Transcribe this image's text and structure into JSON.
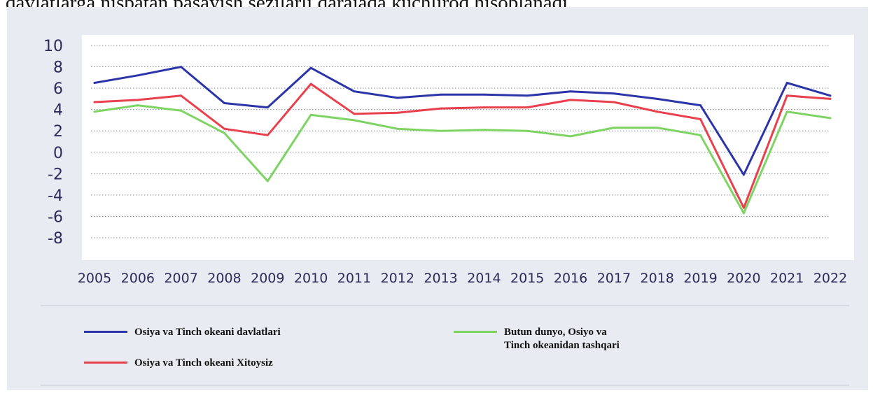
{
  "header": {
    "text": "davlatlarga nisbatan pasayish sezilarli darajada kuchliroq hisoblanadi."
  },
  "colors": {
    "panel_bg": "#e8ecf2",
    "grid": "#8a8f9a",
    "tick_text": "#2e2a5a"
  },
  "chart_data": {
    "type": "line",
    "x": [
      "2005",
      "2006",
      "2007",
      "2008",
      "2009",
      "2010",
      "2011",
      "2012",
      "2013",
      "2014",
      "2015",
      "2016",
      "2017",
      "2018",
      "2019",
      "2020",
      "2021",
      "2022"
    ],
    "ylim": [
      -8,
      10
    ],
    "yticks": [
      "10",
      "8",
      "6",
      "4",
      "2",
      "0",
      "-2",
      "-4",
      "-6",
      "-8"
    ],
    "grid": "horizontal dotted",
    "legend_position": "bottom",
    "series": [
      {
        "name": "Osiya va Tinch okeani davlatlari",
        "color": "#2b35a8",
        "values": [
          6.5,
          7.2,
          8.0,
          4.6,
          4.2,
          7.9,
          5.7,
          5.1,
          5.4,
          5.4,
          5.3,
          5.7,
          5.5,
          5.0,
          4.4,
          -2.1,
          6.5,
          5.3
        ]
      },
      {
        "name": "Osiya va Tinch okeani Xitoysiz",
        "color": "#e8404c",
        "values": [
          4.7,
          4.9,
          5.3,
          2.2,
          1.6,
          6.4,
          3.6,
          3.7,
          4.1,
          4.2,
          4.2,
          4.9,
          4.7,
          3.8,
          3.1,
          -5.2,
          5.3,
          5.0
        ]
      },
      {
        "name": "Butun dunyo, Osiyo va\nTinch okeanidan tashqari",
        "color": "#7ed462",
        "values": [
          3.8,
          4.4,
          3.9,
          1.8,
          -2.7,
          3.5,
          3.0,
          2.2,
          2.0,
          2.1,
          2.0,
          1.5,
          2.3,
          2.3,
          1.6,
          -5.7,
          3.8,
          3.2
        ]
      }
    ]
  }
}
